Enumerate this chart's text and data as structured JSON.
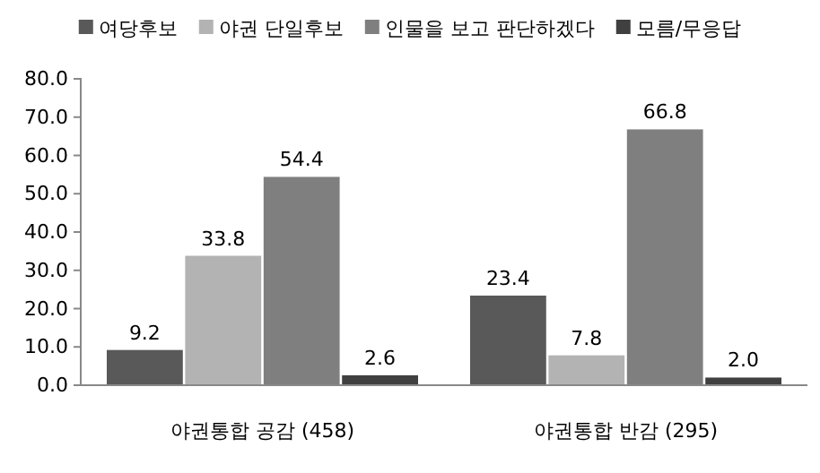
{
  "chart_data": {
    "type": "bar",
    "categories": [
      "야권통합 공감 (458)",
      "야권통합 반감 (295)"
    ],
    "series": [
      {
        "name": "여당후보",
        "color": "#595959",
        "values": [
          9.2,
          23.4
        ]
      },
      {
        "name": "야권 단일후보",
        "color": "#b3b3b3",
        "values": [
          33.8,
          7.8
        ]
      },
      {
        "name": "인물을 보고 판단하겠다",
        "color": "#7f7f7f",
        "values": [
          54.4,
          66.8
        ]
      },
      {
        "name": "모름/무응답",
        "color": "#404040",
        "values": [
          2.6,
          2.0
        ],
        "value_labels": [
          "2.6",
          "2.0"
        ]
      }
    ],
    "ylim": [
      0,
      80
    ],
    "yticks": [
      {
        "value": 0,
        "label": "0.0"
      },
      {
        "value": 10,
        "label": "10.0"
      },
      {
        "value": 20,
        "label": "20.0"
      },
      {
        "value": 30,
        "label": "30.0"
      },
      {
        "value": 40,
        "label": "40.0"
      },
      {
        "value": 50,
        "label": "50.0"
      },
      {
        "value": 60,
        "label": "60.0"
      },
      {
        "value": 70,
        "label": "70.0"
      },
      {
        "value": 80,
        "label": "80.0"
      }
    ],
    "data_labels": true,
    "legend": "top",
    "grid": false
  }
}
